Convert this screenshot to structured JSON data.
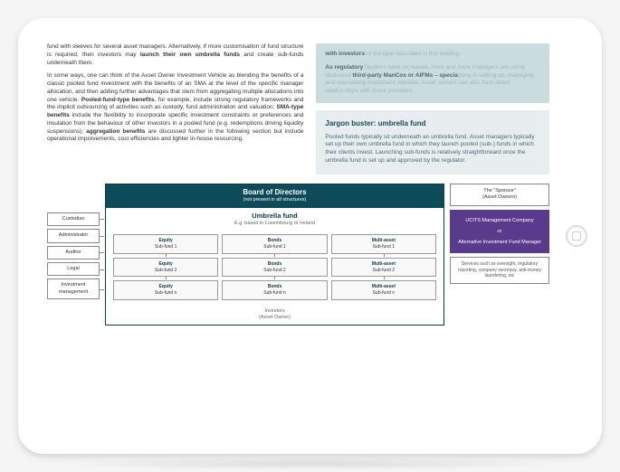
{
  "left": {
    "p1a": "fund with sleeves for several asset managers. Alternatively, if more customisation of fund structure is required, then investors may ",
    "p1b": "launch their own umbrella funds",
    "p1c": " and create sub-funds underneath them.",
    "p2a": "In some ways, one can think of the Asset Owner Investment Vehicle as blending the benefits of a classic pooled fund investment with the benefits of an SMA at the level of the specific manager allocation, and then adding further advantages that stem from aggregating multiple allocations into one vehicle. ",
    "p2b": "Pooled-fund-type benefits",
    "p2c": ", for example, include strong regulatory frameworks and the implicit outsourcing of activities such as custody, fund administration and valuation; ",
    "p2d": "SMA-type benefits",
    "p2e": " include the flexibility to incorporate specific investment constraints or preferences and insulation from the behaviour of other investors in a pooled fund (e.g. redemptions driving liquidity suspensions); ",
    "p2f": "aggregation benefits",
    "p2g": " are discussed further in the following section but include operational improvements, cost efficiencies and lighter in-house resourcing."
  },
  "callout": {
    "l1a": "with investors",
    "l1b": " of the type described in this briefing.",
    "l2a": "As regulatory",
    "l2b": " burdens have increased, more and more managers are us",
    "l2c": "ing dedicated ",
    "l2d": "third-party ManCos or AIFMs – specia",
    "l2e": "lising in setting up, managing and overseeing inves",
    "l2f": "tment vehicles. Asset owners can also form direc",
    "l2g": "t relationships with those providers."
  },
  "jargon": {
    "title": "Jargon buster: umbrella fund",
    "body": "Pooled funds typically sit underneath an umbrella fund. Asset managers typically set up their own umbrella fund in which they launch pooled (sub-) funds in which their clients invest. Launching sub-funds is relatively straightforward once the umbrella fund is set up and approved by the regulator."
  },
  "diagram": {
    "left_boxes": [
      "Custodian",
      "Administrator",
      "Auditor",
      "Legal",
      "Investment management"
    ],
    "bod_title": "Board of Directors",
    "bod_sub": "(not present in all structures)",
    "umb_title": "Umbrella fund",
    "umb_sub": "E.g. based in Luxembourg or Ireland",
    "cells": [
      {
        "h": "Equity",
        "s": "Sub-fund 1"
      },
      {
        "h": "Bonds",
        "s": "Sub-fund 1"
      },
      {
        "h": "Multi-asset",
        "s": "Sub-fund 1"
      },
      {
        "h": "Equity",
        "s": "Sub-fund 2"
      },
      {
        "h": "Bonds",
        "s": "Sub-fund 2"
      },
      {
        "h": "Multi-asset",
        "s": "Sub-fund 2"
      },
      {
        "h": "Equity",
        "s": "Sub-fund n"
      },
      {
        "h": "Bonds",
        "s": "Sub-fund n"
      },
      {
        "h": "Multi-asset",
        "s": "Sub-fund n"
      }
    ],
    "investors": "Investors",
    "investors_sub": "(Asset Owner)",
    "sponsor": "The \"Sponsor\"",
    "sponsor_sub": "(Asset Owners)",
    "mgmt_a": "UCITS Management Company",
    "mgmt_or": "or",
    "mgmt_b": "Alternative Investment Fund Manager",
    "svcs": "Services such as oversight, regulatory reporting, company secretary, anti-money laundering, etc"
  }
}
